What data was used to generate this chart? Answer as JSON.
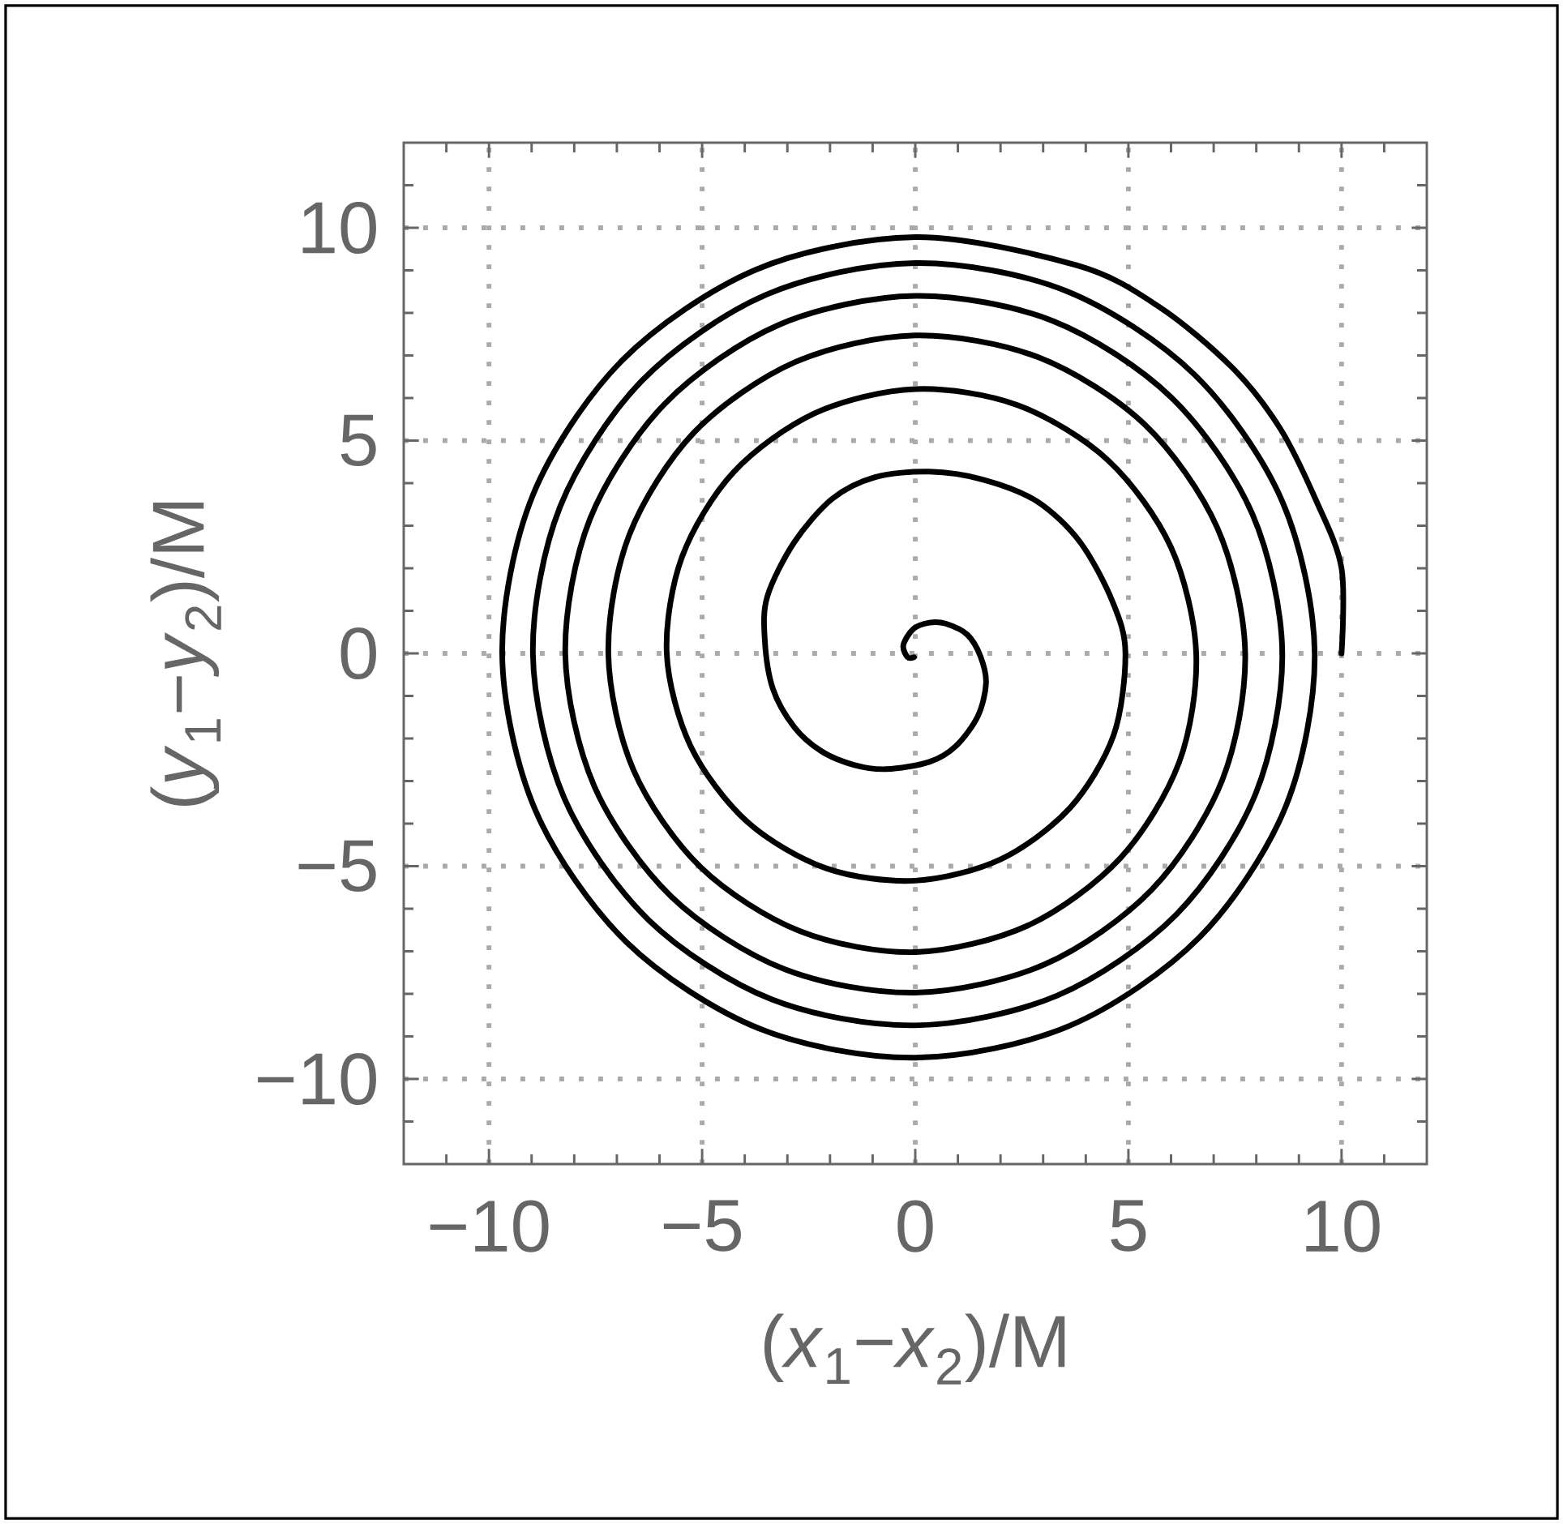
{
  "chart_data": {
    "type": "line",
    "xlabel": "(*x*$_{1}$−*x*$_{2}$)/M",
    "ylabel": "(*y*$_{1}$−*y*$_{2}$)/M",
    "xlim": [
      -12,
      12
    ],
    "ylim": [
      -12,
      12
    ],
    "xticks": [
      {
        "value": -11,
        "label": null
      },
      {
        "value": -10,
        "label": "−10"
      },
      {
        "value": -9,
        "label": null
      },
      {
        "value": -8,
        "label": null
      },
      {
        "value": -7,
        "label": null
      },
      {
        "value": -6,
        "label": null
      },
      {
        "value": -5,
        "label": "−5"
      },
      {
        "value": -4,
        "label": null
      },
      {
        "value": -3,
        "label": null
      },
      {
        "value": -2,
        "label": null
      },
      {
        "value": -1,
        "label": null
      },
      0,
      {
        "value": 1,
        "label": null
      },
      {
        "value": 2,
        "label": null
      },
      {
        "value": 3,
        "label": null
      },
      {
        "value": 4,
        "label": null
      },
      5,
      {
        "value": 6,
        "label": null
      },
      {
        "value": 7,
        "label": null
      },
      {
        "value": 8,
        "label": null
      },
      {
        "value": 9,
        "label": null
      },
      10,
      {
        "value": 11,
        "label": null
      }
    ],
    "yticks": [
      {
        "value": -11,
        "label": null
      },
      {
        "value": -10,
        "label": "−10"
      },
      {
        "value": -9,
        "label": null
      },
      {
        "value": -8,
        "label": null
      },
      {
        "value": -7,
        "label": null
      },
      {
        "value": -6,
        "label": null
      },
      {
        "value": -5,
        "label": "−5"
      },
      {
        "value": -4,
        "label": null
      },
      {
        "value": -3,
        "label": null
      },
      {
        "value": -2,
        "label": null
      },
      {
        "value": -1,
        "label": null
      },
      0,
      {
        "value": 1,
        "label": null
      },
      {
        "value": 2,
        "label": null
      },
      {
        "value": 3,
        "label": null
      },
      {
        "value": 4,
        "label": null
      },
      5,
      {
        "value": 6,
        "label": null
      },
      {
        "value": 7,
        "label": null
      },
      {
        "value": 8,
        "label": null
      },
      {
        "value": 9,
        "label": null
      },
      10,
      {
        "value": 11,
        "label": null
      }
    ],
    "grid": true,
    "series": [
      {
        "color": "#000000",
        "x": [
          10,
          10,
          9.4,
          8.55,
          7.42,
          5.71,
          3.78,
          0,
          -3.73,
          -6.88,
          -8.97,
          -9.69,
          -8.91,
          -6.78,
          -3.65,
          0,
          3.62,
          6.67,
          8.69,
          9.37,
          8.61,
          6.55,
          3.53,
          0,
          -3.49,
          -6.41,
          -8.33,
          -8.97,
          -8.23,
          -6.26,
          -3.37,
          0,
          3.33,
          6.13,
          7.98,
          8.61,
          7.91,
          6.01,
          3.23,
          0,
          -3.2,
          -5.87,
          -7.63,
          -8.21,
          -7.53,
          -5.72,
          -3.07,
          0,
          3.03,
          5.55,
          7.2,
          7.74,
          7.09,
          5.38,
          2.88,
          0,
          -2.83,
          -5.19,
          -6.71,
          -7.2,
          -6.61,
          -5.03,
          -2.7,
          0,
          2.65,
          4.81,
          6.19,
          6.59,
          6,
          4.53,
          2.41,
          0,
          -2.34,
          -4.26,
          -5.47,
          -5.83,
          -5.27,
          -3.95,
          -2.09,
          0,
          2,
          3.63,
          4.65,
          4.93,
          4.63,
          3.87,
          2.86,
          1.6,
          0.33,
          -0.94,
          -1.95,
          -2.84,
          -3.47,
          -3.53,
          -3.34,
          -2.84,
          -2.2,
          -1.44,
          -0.68,
          0.33,
          0.96,
          1.47,
          1.66,
          1.53,
          1.22,
          0.71,
          0.33,
          -0.05,
          -0.28,
          -0.18,
          -0.03
        ],
        "values": [
          0,
          2,
          3.6,
          5.3,
          6.73,
          8.15,
          9.12,
          9.78,
          9.02,
          6.88,
          3.72,
          0,
          -3.69,
          -6.78,
          -8.82,
          -9.5,
          -8.75,
          -6.67,
          -3.6,
          0,
          3.57,
          6.55,
          8.52,
          9.17,
          8.43,
          6.41,
          3.45,
          0,
          -3.41,
          -6.26,
          -8.13,
          -8.74,
          -8.04,
          -6.13,
          -3.31,
          0,
          3.27,
          6.01,
          7.81,
          8.4,
          7.72,
          5.87,
          3.16,
          0,
          -3.12,
          -5.72,
          -7.42,
          -7.97,
          -7.31,
          -5.55,
          -2.98,
          0,
          2.94,
          5.38,
          6.96,
          7.47,
          6.84,
          5.19,
          2.78,
          0,
          -2.74,
          -5.03,
          -6.53,
          -7.02,
          -6.39,
          -4.81,
          -2.56,
          0,
          2.49,
          4.53,
          5.83,
          6.21,
          5.65,
          4.26,
          2.27,
          0,
          -2.18,
          -3.95,
          -5.05,
          -5.34,
          -4.84,
          -3.63,
          -1.93,
          0,
          1.21,
          2.61,
          3.57,
          4.08,
          4.27,
          4.14,
          3.63,
          2.61,
          1.34,
          0.32,
          -0.83,
          -1.73,
          -2.3,
          -2.62,
          -2.72,
          -2.55,
          -2.17,
          -1.47,
          -0.7,
          -0.07,
          0.44,
          0.7,
          0.72,
          0.57,
          0.19,
          -0.09,
          -0.09
        ]
      }
    ]
  }
}
